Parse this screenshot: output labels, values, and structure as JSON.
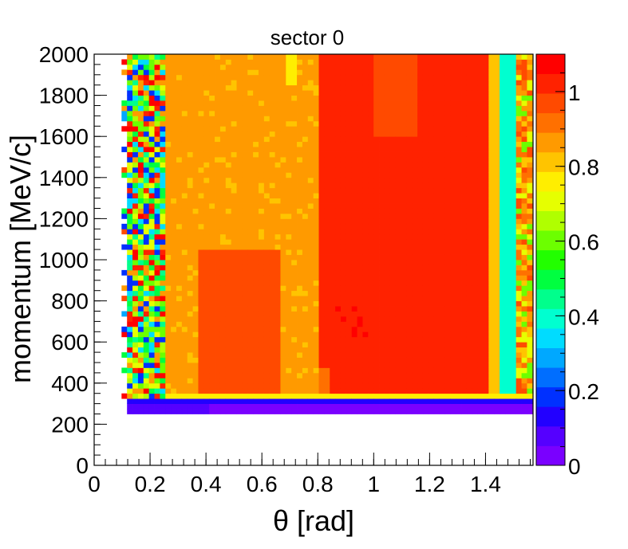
{
  "chart_data": {
    "type": "heatmap",
    "title": "sector 0",
    "xlabel": "θ [rad]",
    "ylabel": "momentum [MeV/c]",
    "xlim": [
      0,
      1.57
    ],
    "ylim": [
      0,
      2000
    ],
    "x_ticks": [
      0,
      0.2,
      0.4,
      0.6,
      0.8,
      1,
      1.2,
      1.4
    ],
    "x_tick_labels": [
      "0",
      "0.2",
      "0.4",
      "0.6",
      "0.8",
      "1",
      "1.2",
      "1.4"
    ],
    "y_ticks": [
      0,
      200,
      400,
      600,
      800,
      1000,
      1200,
      1400,
      1600,
      1800,
      2000
    ],
    "y_tick_labels": [
      "0",
      "200",
      "400",
      "600",
      "800",
      "1000",
      "1200",
      "1400",
      "1600",
      "1800",
      "2000"
    ],
    "z_range": [
      0,
      1.1
    ],
    "z_ticks": [
      0,
      0.2,
      0.4,
      0.6,
      0.8,
      1
    ],
    "z_tick_labels": [
      "0",
      "0.2",
      "0.4",
      "0.6",
      "0.8",
      "1"
    ],
    "palette": [
      "#7a00ff",
      "#5500ff",
      "#2200ff",
      "#0030ff",
      "#006eff",
      "#00a8ff",
      "#00dcff",
      "#00ffd0",
      "#00ff8c",
      "#00ff40",
      "#22ff00",
      "#6cff00",
      "#b0ff00",
      "#e6ff00",
      "#ffee00",
      "#ffc400",
      "#ff9a00",
      "#ff7000",
      "#ff4a00",
      "#ff2200",
      "#ff0000"
    ],
    "grid": false,
    "legend": "color-bar-right",
    "regions": [
      {
        "x": [
          0.1,
          0.12
        ],
        "y": [
          260,
          2000
        ],
        "value": "noisy",
        "pattern": "sparse"
      },
      {
        "x": [
          0.12,
          0.26
        ],
        "y": [
          300,
          2000
        ],
        "value": "mixed 0.1-1.1"
      },
      {
        "x": [
          0.26,
          0.8
        ],
        "y": [
          320,
          2000
        ],
        "value": 0.85
      },
      {
        "x": [
          0.37,
          0.66
        ],
        "y": [
          350,
          1040
        ],
        "value": 0.95
      },
      {
        "x": [
          0.8,
          1.42
        ],
        "y": [
          300,
          2000
        ],
        "value": 1.02
      },
      {
        "x": [
          1.4,
          1.46
        ],
        "y": [
          290,
          2000
        ],
        "value": 0.82
      },
      {
        "x": [
          1.46,
          1.51
        ],
        "y": [
          290,
          2000
        ],
        "value": 0.4
      },
      {
        "x": [
          1.51,
          1.57
        ],
        "y": [
          290,
          2000
        ],
        "value": "mixed 0.6-1.0"
      },
      {
        "x": [
          0.1,
          1.57
        ],
        "y": [
          260,
          320
        ],
        "value": 0.05
      }
    ]
  }
}
